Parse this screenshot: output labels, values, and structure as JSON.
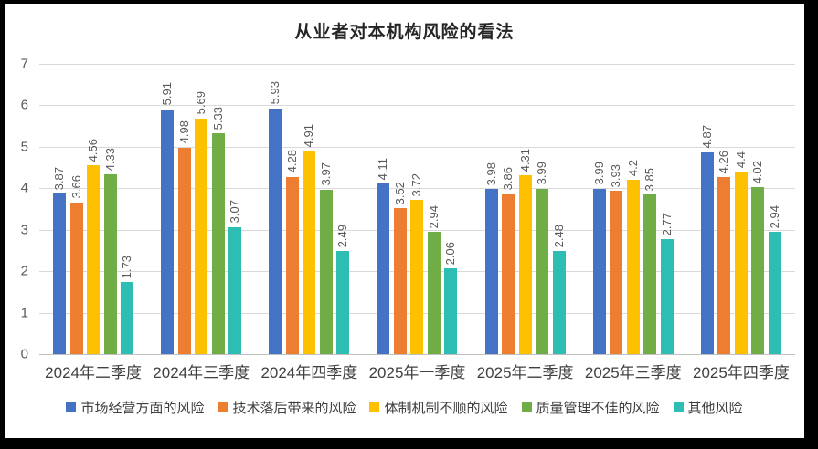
{
  "title": "从业者对本机构风险的看法",
  "frame": {
    "outer_background": "#000000",
    "chart_background": "#FFFFFF",
    "gridline_color": "#D9D9D9",
    "axis_line_color": "#BFBFBF"
  },
  "chart_data": {
    "type": "bar",
    "title": "从业者对本机构风险的看法",
    "categories": [
      "2024年二季度",
      "2024年三季度",
      "2024年四季度",
      "2025年一季度",
      "2025年二季度",
      "2025年三季度",
      "2025年四季度"
    ],
    "series": [
      {
        "name": "市场经营方面的风险",
        "color": "#4472C4",
        "values": [
          3.87,
          5.91,
          5.93,
          4.11,
          3.98,
          3.99,
          4.87
        ]
      },
      {
        "name": "技术落后带来的风险",
        "color": "#ED7D31",
        "values": [
          3.66,
          4.98,
          4.28,
          3.52,
          3.86,
          3.93,
          4.26
        ]
      },
      {
        "name": "体制机制不顺的风险",
        "color": "#FFC000",
        "values": [
          4.56,
          5.69,
          4.91,
          3.72,
          4.31,
          4.2,
          4.4
        ]
      },
      {
        "name": "质量管理不佳的风险",
        "color": "#70AD47",
        "values": [
          4.33,
          5.33,
          3.97,
          2.94,
          3.99,
          3.85,
          4.02
        ]
      },
      {
        "name": "其他风险",
        "color": "#2EBDB3",
        "values": [
          1.73,
          3.07,
          2.49,
          2.06,
          2.48,
          2.77,
          2.94
        ]
      }
    ],
    "ylim": [
      0,
      7
    ],
    "y_ticks": [
      0,
      1,
      2,
      3,
      4,
      5,
      6,
      7
    ],
    "grid": true,
    "legend_position": "bottom",
    "data_labels": "rotated-vertical"
  }
}
